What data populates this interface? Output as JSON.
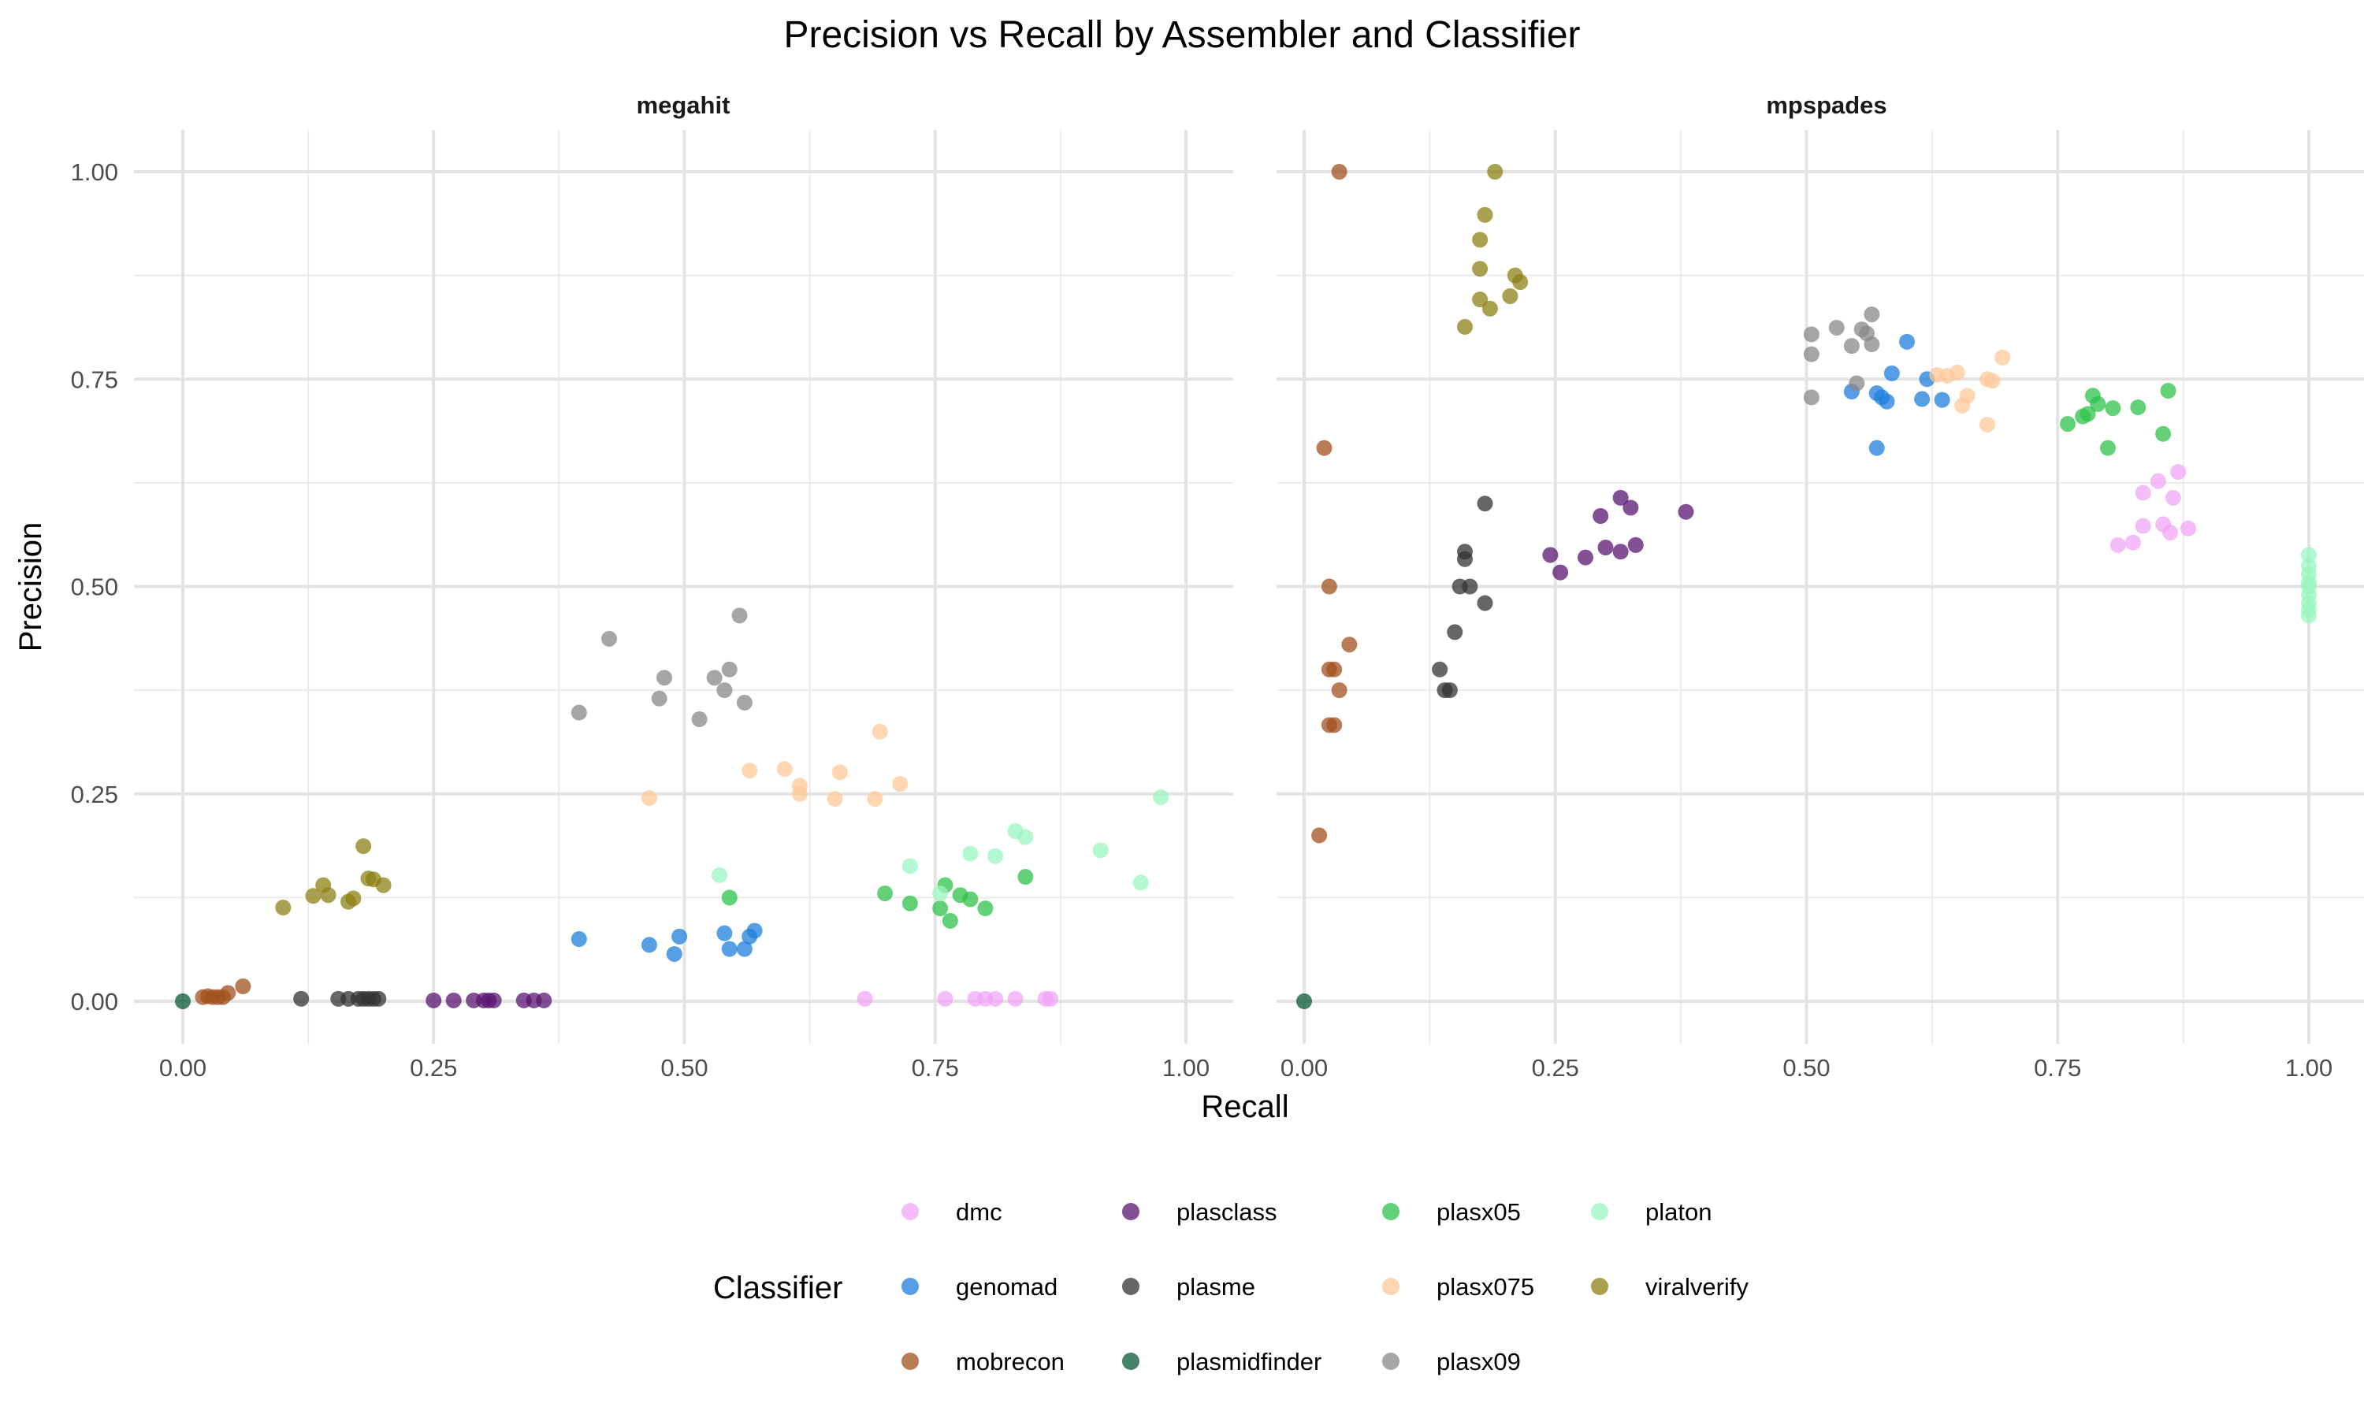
{
  "chart_data": {
    "type": "scatter",
    "title": "Precision vs Recall by Assembler and Classifier",
    "xlabel": "Recall",
    "ylabel": "Precision",
    "xlim": [
      0,
      1
    ],
    "ylim": [
      0,
      1
    ],
    "x_ticks": [
      "0.00",
      "0.25",
      "0.50",
      "0.75",
      "1.00"
    ],
    "y_ticks": [
      "0.00",
      "0.25",
      "0.50",
      "0.75",
      "1.00"
    ],
    "grid": true,
    "legend": {
      "title": "Classifier",
      "placement": "bottom"
    },
    "panels": [
      {
        "name": "megahit",
        "series": [
          {
            "name": "dmc",
            "color": "#f0a6f5",
            "points": [
              [
                0.68,
                0.003
              ],
              [
                0.76,
                0.003
              ],
              [
                0.79,
                0.003
              ],
              [
                0.8,
                0.003
              ],
              [
                0.81,
                0.003
              ],
              [
                0.83,
                0.003
              ],
              [
                0.86,
                0.003
              ],
              [
                0.865,
                0.003
              ]
            ]
          },
          {
            "name": "genomad",
            "color": "#1f7fdc",
            "points": [
              [
                0.395,
                0.075
              ],
              [
                0.465,
                0.068
              ],
              [
                0.49,
                0.057
              ],
              [
                0.495,
                0.078
              ],
              [
                0.54,
                0.082
              ],
              [
                0.545,
                0.063
              ],
              [
                0.56,
                0.063
              ],
              [
                0.565,
                0.078
              ],
              [
                0.57,
                0.085
              ]
            ]
          },
          {
            "name": "mobrecon",
            "color": "#a0511e",
            "points": [
              [
                0.02,
                0.005
              ],
              [
                0.025,
                0.006
              ],
              [
                0.03,
                0.005
              ],
              [
                0.035,
                0.005
              ],
              [
                0.04,
                0.005
              ],
              [
                0.045,
                0.01
              ],
              [
                0.06,
                0.018
              ]
            ]
          },
          {
            "name": "plasclass",
            "color": "#5a1673",
            "points": [
              [
                0.25,
                0.001
              ],
              [
                0.27,
                0.001
              ],
              [
                0.29,
                0.001
              ],
              [
                0.3,
                0.001
              ],
              [
                0.305,
                0.001
              ],
              [
                0.31,
                0.001
              ],
              [
                0.34,
                0.001
              ],
              [
                0.35,
                0.001
              ],
              [
                0.36,
                0.001
              ]
            ]
          },
          {
            "name": "plasme",
            "color": "#333333",
            "points": [
              [
                0.118,
                0.003
              ],
              [
                0.155,
                0.003
              ],
              [
                0.165,
                0.003
              ],
              [
                0.175,
                0.003
              ],
              [
                0.18,
                0.003
              ],
              [
                0.185,
                0.003
              ],
              [
                0.19,
                0.003
              ],
              [
                0.195,
                0.003
              ]
            ]
          },
          {
            "name": "plasmidfinder",
            "color": "#0a5a3a",
            "points": [
              [
                0.0,
                0.0
              ]
            ]
          },
          {
            "name": "plasx05",
            "color": "#2ec24a",
            "points": [
              [
                0.545,
                0.125
              ],
              [
                0.7,
                0.13
              ],
              [
                0.725,
                0.118
              ],
              [
                0.76,
                0.14
              ],
              [
                0.755,
                0.112
              ],
              [
                0.765,
                0.097
              ],
              [
                0.775,
                0.128
              ],
              [
                0.785,
                0.123
              ],
              [
                0.8,
                0.112
              ],
              [
                0.84,
                0.15
              ]
            ]
          },
          {
            "name": "plasx075",
            "color": "#fdc898",
            "points": [
              [
                0.465,
                0.245
              ],
              [
                0.565,
                0.278
              ],
              [
                0.6,
                0.28
              ],
              [
                0.615,
                0.26
              ],
              [
                0.615,
                0.25
              ],
              [
                0.65,
                0.244
              ],
              [
                0.655,
                0.276
              ],
              [
                0.69,
                0.244
              ],
              [
                0.695,
                0.325
              ],
              [
                0.715,
                0.262
              ]
            ]
          },
          {
            "name": "plasx09",
            "color": "#888888",
            "points": [
              [
                0.395,
                0.348
              ],
              [
                0.425,
                0.437
              ],
              [
                0.475,
                0.365
              ],
              [
                0.48,
                0.39
              ],
              [
                0.515,
                0.34
              ],
              [
                0.53,
                0.39
              ],
              [
                0.54,
                0.375
              ],
              [
                0.545,
                0.4
              ],
              [
                0.555,
                0.465
              ],
              [
                0.56,
                0.36
              ]
            ]
          },
          {
            "name": "platon",
            "color": "#99f5c0",
            "points": [
              [
                0.535,
                0.152
              ],
              [
                0.725,
                0.163
              ],
              [
                0.755,
                0.13
              ],
              [
                0.785,
                0.178
              ],
              [
                0.81,
                0.175
              ],
              [
                0.83,
                0.205
              ],
              [
                0.84,
                0.198
              ],
              [
                0.915,
                0.182
              ],
              [
                0.955,
                0.143
              ],
              [
                0.975,
                0.246
              ]
            ]
          },
          {
            "name": "viralverify",
            "color": "#8c8016",
            "points": [
              [
                0.1,
                0.113
              ],
              [
                0.13,
                0.127
              ],
              [
                0.14,
                0.14
              ],
              [
                0.145,
                0.128
              ],
              [
                0.165,
                0.12
              ],
              [
                0.17,
                0.124
              ],
              [
                0.18,
                0.187
              ],
              [
                0.185,
                0.148
              ],
              [
                0.19,
                0.147
              ],
              [
                0.2,
                0.14
              ]
            ]
          }
        ]
      },
      {
        "name": "mpspades",
        "series": [
          {
            "name": "dmc",
            "color": "#f0a6f5",
            "points": [
              [
                0.81,
                0.55
              ],
              [
                0.825,
                0.553
              ],
              [
                0.835,
                0.613
              ],
              [
                0.835,
                0.573
              ],
              [
                0.85,
                0.627
              ],
              [
                0.855,
                0.575
              ],
              [
                0.862,
                0.565
              ],
              [
                0.865,
                0.607
              ],
              [
                0.87,
                0.638
              ],
              [
                0.88,
                0.57
              ]
            ]
          },
          {
            "name": "genomad",
            "color": "#1f7fdc",
            "points": [
              [
                0.545,
                0.735
              ],
              [
                0.57,
                0.733
              ],
              [
                0.575,
                0.728
              ],
              [
                0.57,
                0.667
              ],
              [
                0.58,
                0.723
              ],
              [
                0.585,
                0.757
              ],
              [
                0.6,
                0.795
              ],
              [
                0.615,
                0.726
              ],
              [
                0.62,
                0.75
              ],
              [
                0.635,
                0.725
              ]
            ]
          },
          {
            "name": "mobrecon",
            "color": "#a0511e",
            "points": [
              [
                0.035,
                1.0
              ],
              [
                0.02,
                0.667
              ],
              [
                0.025,
                0.5
              ],
              [
                0.045,
                0.43
              ],
              [
                0.025,
                0.4
              ],
              [
                0.03,
                0.4
              ],
              [
                0.035,
                0.375
              ],
              [
                0.025,
                0.333
              ],
              [
                0.03,
                0.333
              ],
              [
                0.015,
                0.2
              ]
            ]
          },
          {
            "name": "plasclass",
            "color": "#5a1673",
            "points": [
              [
                0.245,
                0.538
              ],
              [
                0.255,
                0.517
              ],
              [
                0.28,
                0.535
              ],
              [
                0.295,
                0.585
              ],
              [
                0.3,
                0.547
              ],
              [
                0.315,
                0.607
              ],
              [
                0.315,
                0.542
              ],
              [
                0.325,
                0.595
              ],
              [
                0.33,
                0.55
              ],
              [
                0.38,
                0.59
              ]
            ]
          },
          {
            "name": "plasme",
            "color": "#333333",
            "points": [
              [
                0.18,
                0.6
              ],
              [
                0.16,
                0.542
              ],
              [
                0.16,
                0.533
              ],
              [
                0.155,
                0.5
              ],
              [
                0.165,
                0.5
              ],
              [
                0.18,
                0.48
              ],
              [
                0.15,
                0.445
              ],
              [
                0.135,
                0.4
              ],
              [
                0.14,
                0.375
              ],
              [
                0.145,
                0.375
              ]
            ]
          },
          {
            "name": "plasmidfinder",
            "color": "#0a5a3a",
            "points": [
              [
                0.0,
                0.0
              ]
            ]
          },
          {
            "name": "plasx05",
            "color": "#2ec24a",
            "points": [
              [
                0.76,
                0.696
              ],
              [
                0.775,
                0.705
              ],
              [
                0.78,
                0.708
              ],
              [
                0.785,
                0.73
              ],
              [
                0.79,
                0.72
              ],
              [
                0.8,
                0.667
              ],
              [
                0.805,
                0.715
              ],
              [
                0.83,
                0.716
              ],
              [
                0.855,
                0.684
              ],
              [
                0.86,
                0.736
              ]
            ]
          },
          {
            "name": "plasx075",
            "color": "#fdc898",
            "points": [
              [
                0.63,
                0.755
              ],
              [
                0.64,
                0.754
              ],
              [
                0.65,
                0.758
              ],
              [
                0.655,
                0.718
              ],
              [
                0.66,
                0.73
              ],
              [
                0.68,
                0.75
              ],
              [
                0.68,
                0.695
              ],
              [
                0.685,
                0.748
              ],
              [
                0.695,
                0.776
              ]
            ]
          },
          {
            "name": "plasx09",
            "color": "#888888",
            "points": [
              [
                0.505,
                0.804
              ],
              [
                0.505,
                0.78
              ],
              [
                0.505,
                0.728
              ],
              [
                0.53,
                0.812
              ],
              [
                0.545,
                0.79
              ],
              [
                0.55,
                0.745
              ],
              [
                0.555,
                0.81
              ],
              [
                0.56,
                0.805
              ],
              [
                0.565,
                0.828
              ],
              [
                0.565,
                0.792
              ]
            ]
          },
          {
            "name": "platon",
            "color": "#99f5c0",
            "points": [
              [
                1.0,
                0.538
              ],
              [
                1.0,
                0.525
              ],
              [
                1.0,
                0.515
              ],
              [
                1.0,
                0.505
              ],
              [
                1.0,
                0.5
              ],
              [
                1.0,
                0.49
              ],
              [
                1.0,
                0.48
              ],
              [
                1.0,
                0.472
              ],
              [
                1.0,
                0.465
              ]
            ]
          },
          {
            "name": "viralverify",
            "color": "#8c8016",
            "points": [
              [
                0.19,
                1.0
              ],
              [
                0.18,
                0.948
              ],
              [
                0.175,
                0.918
              ],
              [
                0.175,
                0.883
              ],
              [
                0.21,
                0.875
              ],
              [
                0.215,
                0.867
              ],
              [
                0.205,
                0.85
              ],
              [
                0.175,
                0.846
              ],
              [
                0.185,
                0.835
              ],
              [
                0.16,
                0.813
              ]
            ]
          }
        ]
      }
    ]
  }
}
